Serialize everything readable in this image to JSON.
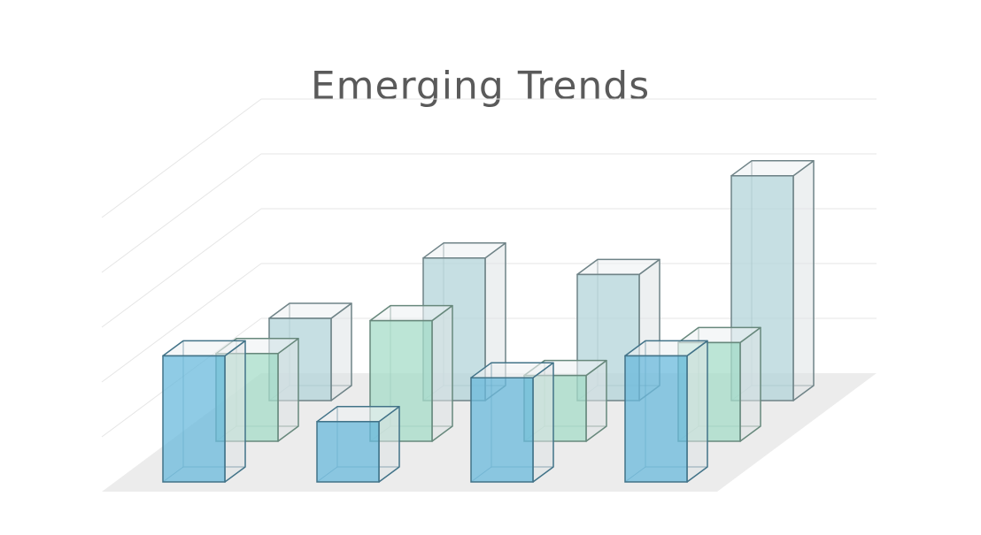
{
  "chart_data": {
    "type": "bar",
    "title": "Emerging Trends",
    "xlabel": "",
    "ylabel": "",
    "ylim": [
      0,
      5
    ],
    "grid": true,
    "categories": [
      "",
      "",
      "",
      ""
    ],
    "series": [
      {
        "values": [
          2.3,
          1.1,
          1.9,
          2.3
        ],
        "color": "#6ab9dc"
      },
      {
        "values": [
          1.6,
          2.2,
          1.2,
          1.8
        ],
        "color": "#a6dcc8"
      },
      {
        "values": [
          1.5,
          2.6,
          2.3,
          4.1
        ],
        "color": "#b3d4da"
      }
    ]
  }
}
